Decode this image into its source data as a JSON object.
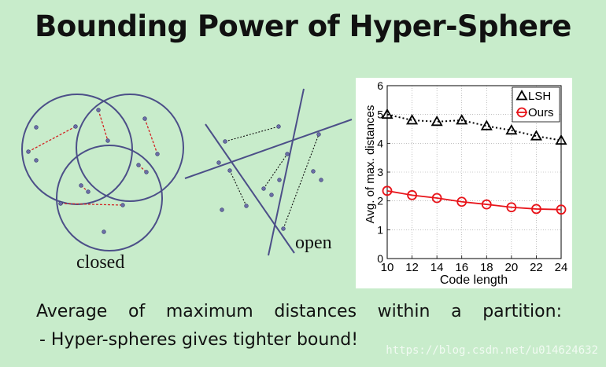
{
  "slide": {
    "title": "Bounding Power of Hyper-Sphere",
    "closed_label": "closed",
    "open_label": "open",
    "caption_line1": "Average of maximum distances within a partition:",
    "caption_line2": "- Hyper-spheres gives tighter bound!",
    "watermark": "https://blog.csdn.net/u014624632"
  },
  "colors": {
    "background": "#c8eccb",
    "circle_stroke": "#4c4f88",
    "point_fill": "#6a6ea6",
    "red_dash": "#d22222",
    "lsh_series": "#000000",
    "ours_series": "#e8141a"
  },
  "chart_data": {
    "type": "line",
    "xlabel": "Code length",
    "ylabel": "Avg. of max. distances",
    "x": [
      10,
      12,
      14,
      16,
      18,
      20,
      22,
      24
    ],
    "xlim": [
      10,
      24
    ],
    "ylim": [
      0,
      6
    ],
    "xticks": [
      "10",
      "12",
      "14",
      "16",
      "18",
      "20",
      "22",
      "24"
    ],
    "yticks": [
      "0",
      "1",
      "2",
      "3",
      "4",
      "5",
      "6"
    ],
    "grid": true,
    "legend_position": "top-right",
    "series": [
      {
        "name": "LSH",
        "marker": "triangle",
        "line": "dotted",
        "color": "#000000",
        "values": [
          5.0,
          4.8,
          4.75,
          4.8,
          4.6,
          4.45,
          4.25,
          4.1
        ]
      },
      {
        "name": "Ours",
        "marker": "circle",
        "line": "solid",
        "color": "#e8141a",
        "values": [
          2.35,
          2.2,
          2.1,
          1.97,
          1.88,
          1.78,
          1.72,
          1.7
        ]
      }
    ]
  }
}
